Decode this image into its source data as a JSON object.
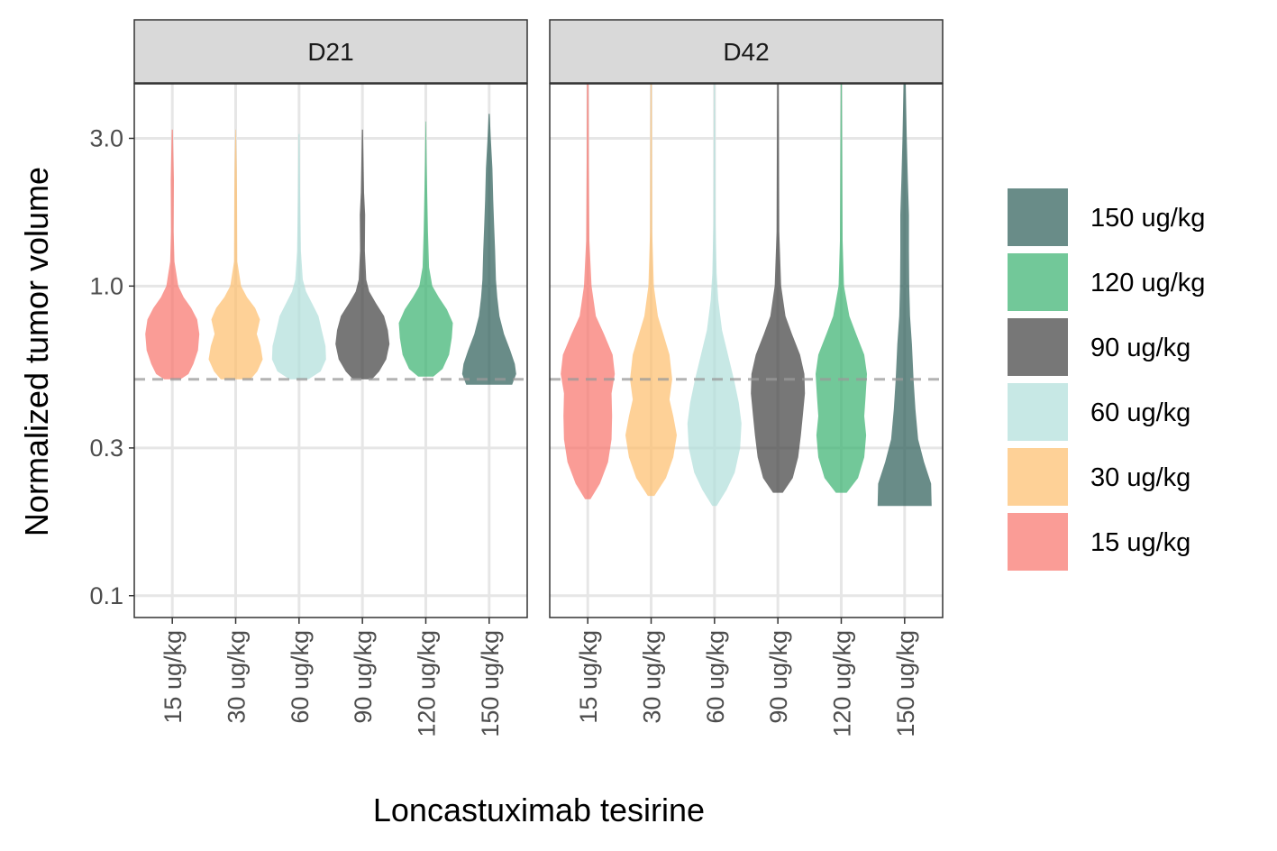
{
  "chart_data": {
    "type": "violin",
    "xlabel": "Loncastuximab tesirine",
    "ylabel": "Normalized tumor volume",
    "y_scale": "log",
    "ylim": [
      0.085,
      4.5
    ],
    "y_ticks": [
      {
        "value": 0.1,
        "label": "0.1"
      },
      {
        "value": 0.3,
        "label": "0.3"
      },
      {
        "value": 1.0,
        "label": "1.0"
      },
      {
        "value": 3.0,
        "label": "3.0"
      }
    ],
    "reference_line": 0.5,
    "categories": [
      "15 ug/kg",
      "30 ug/kg",
      "60 ug/kg",
      "90 ug/kg",
      "120 ug/kg",
      "150 ug/kg"
    ],
    "colors": [
      "#F8766D",
      "#FDBF6F",
      "#B2DFDB",
      "#424242",
      "#3CB371",
      "#2F5F5A"
    ],
    "legend": {
      "placement": "right",
      "entries": [
        "150 ug/kg",
        "120 ug/kg",
        "90 ug/kg",
        "60 ug/kg",
        "30 ug/kg",
        "15 ug/kg"
      ]
    },
    "grid": true,
    "facets": [
      {
        "label": "D21",
        "violins": [
          {
            "min": 0.5,
            "max": 3.2,
            "profile": [
              [
                0.5,
                0.3
              ],
              [
                0.52,
                0.6
              ],
              [
                0.56,
                0.78
              ],
              [
                0.62,
                0.95
              ],
              [
                0.7,
                1.0
              ],
              [
                0.78,
                0.92
              ],
              [
                0.85,
                0.7
              ],
              [
                0.92,
                0.42
              ],
              [
                1.0,
                0.22
              ],
              [
                1.2,
                0.08
              ],
              [
                1.5,
                0.05
              ],
              [
                2.2,
                0.06
              ],
              [
                3.2,
                0.02
              ]
            ]
          },
          {
            "min": 0.5,
            "max": 3.2,
            "profile": [
              [
                0.5,
                0.55
              ],
              [
                0.53,
                0.8
              ],
              [
                0.58,
                1.0
              ],
              [
                0.64,
                0.92
              ],
              [
                0.7,
                0.78
              ],
              [
                0.78,
                0.9
              ],
              [
                0.85,
                0.72
              ],
              [
                0.92,
                0.42
              ],
              [
                1.0,
                0.2
              ],
              [
                1.2,
                0.06
              ],
              [
                2.0,
                0.05
              ],
              [
                2.4,
                0.04
              ],
              [
                3.2,
                0.01
              ]
            ]
          },
          {
            "min": 0.5,
            "max": 3.1,
            "profile": [
              [
                0.5,
                0.35
              ],
              [
                0.53,
                0.8
              ],
              [
                0.58,
                1.0
              ],
              [
                0.64,
                0.98
              ],
              [
                0.72,
                0.84
              ],
              [
                0.8,
                0.72
              ],
              [
                0.88,
                0.48
              ],
              [
                0.96,
                0.26
              ],
              [
                1.05,
                0.14
              ],
              [
                1.3,
                0.07
              ],
              [
                2.0,
                0.04
              ],
              [
                3.1,
                0.02
              ]
            ]
          },
          {
            "min": 0.5,
            "max": 3.2,
            "profile": [
              [
                0.5,
                0.35
              ],
              [
                0.53,
                0.62
              ],
              [
                0.58,
                0.88
              ],
              [
                0.65,
                1.0
              ],
              [
                0.72,
                0.94
              ],
              [
                0.8,
                0.8
              ],
              [
                0.88,
                0.5
              ],
              [
                0.96,
                0.25
              ],
              [
                1.05,
                0.14
              ],
              [
                1.3,
                0.09
              ],
              [
                1.7,
                0.1
              ],
              [
                2.0,
                0.06
              ],
              [
                3.2,
                0.02
              ]
            ]
          },
          {
            "min": 0.51,
            "max": 3.4,
            "profile": [
              [
                0.51,
                0.28
              ],
              [
                0.54,
                0.62
              ],
              [
                0.6,
                0.86
              ],
              [
                0.68,
                0.96
              ],
              [
                0.76,
                1.0
              ],
              [
                0.84,
                0.78
              ],
              [
                0.92,
                0.48
              ],
              [
                1.0,
                0.24
              ],
              [
                1.15,
                0.12
              ],
              [
                1.5,
                0.08
              ],
              [
                2.5,
                0.03
              ],
              [
                3.4,
                0.01
              ]
            ]
          },
          {
            "min": 0.48,
            "max": 3.6,
            "profile": [
              [
                0.48,
                0.85
              ],
              [
                0.52,
                1.0
              ],
              [
                0.56,
                0.95
              ],
              [
                0.62,
                0.78
              ],
              [
                0.7,
                0.55
              ],
              [
                0.8,
                0.38
              ],
              [
                0.92,
                0.3
              ],
              [
                1.05,
                0.25
              ],
              [
                1.3,
                0.22
              ],
              [
                1.6,
                0.18
              ],
              [
                1.9,
                0.15
              ],
              [
                2.4,
                0.12
              ],
              [
                3.0,
                0.06
              ],
              [
                3.6,
                0.02
              ]
            ]
          }
        ]
      },
      {
        "label": "D42",
        "violins": [
          {
            "min": 0.205,
            "max": 4.5,
            "profile": [
              [
                0.205,
                0.1
              ],
              [
                0.23,
                0.45
              ],
              [
                0.27,
                0.75
              ],
              [
                0.32,
                0.88
              ],
              [
                0.38,
                0.9
              ],
              [
                0.45,
                0.88
              ],
              [
                0.52,
                1.0
              ],
              [
                0.6,
                0.92
              ],
              [
                0.7,
                0.6
              ],
              [
                0.8,
                0.3
              ],
              [
                1.0,
                0.14
              ],
              [
                1.4,
                0.06
              ],
              [
                2.5,
                0.04
              ],
              [
                4.5,
                0.03
              ]
            ]
          },
          {
            "min": 0.21,
            "max": 4.5,
            "profile": [
              [
                0.21,
                0.12
              ],
              [
                0.24,
                0.55
              ],
              [
                0.28,
                0.82
              ],
              [
                0.33,
                0.95
              ],
              [
                0.38,
                0.82
              ],
              [
                0.43,
                0.68
              ],
              [
                0.5,
                0.78
              ],
              [
                0.6,
                0.68
              ],
              [
                0.7,
                0.45
              ],
              [
                0.8,
                0.25
              ],
              [
                1.0,
                0.1
              ],
              [
                1.5,
                0.04
              ],
              [
                4.5,
                0.02
              ]
            ]
          },
          {
            "min": 0.195,
            "max": 4.5,
            "profile": [
              [
                0.195,
                0.08
              ],
              [
                0.22,
                0.45
              ],
              [
                0.25,
                0.75
              ],
              [
                0.3,
                0.95
              ],
              [
                0.36,
                1.0
              ],
              [
                0.42,
                0.9
              ],
              [
                0.5,
                0.72
              ],
              [
                0.6,
                0.5
              ],
              [
                0.72,
                0.28
              ],
              [
                0.9,
                0.14
              ],
              [
                1.1,
                0.08
              ],
              [
                1.6,
                0.04
              ],
              [
                4.5,
                0.02
              ]
            ]
          },
          {
            "min": 0.215,
            "max": 4.5,
            "profile": [
              [
                0.215,
                0.18
              ],
              [
                0.24,
                0.55
              ],
              [
                0.28,
                0.75
              ],
              [
                0.33,
                0.85
              ],
              [
                0.38,
                0.92
              ],
              [
                0.45,
                1.0
              ],
              [
                0.52,
                0.98
              ],
              [
                0.6,
                0.82
              ],
              [
                0.7,
                0.52
              ],
              [
                0.8,
                0.28
              ],
              [
                1.0,
                0.12
              ],
              [
                1.5,
                0.05
              ],
              [
                4.5,
                0.03
              ]
            ]
          },
          {
            "min": 0.215,
            "max": 4.5,
            "profile": [
              [
                0.215,
                0.2
              ],
              [
                0.24,
                0.62
              ],
              [
                0.28,
                0.85
              ],
              [
                0.33,
                0.92
              ],
              [
                0.38,
                0.85
              ],
              [
                0.44,
                0.9
              ],
              [
                0.52,
                0.95
              ],
              [
                0.6,
                0.85
              ],
              [
                0.7,
                0.55
              ],
              [
                0.8,
                0.3
              ],
              [
                1.0,
                0.1
              ],
              [
                1.4,
                0.05
              ],
              [
                4.5,
                0.02
              ]
            ]
          },
          {
            "min": 0.195,
            "max": 4.5,
            "profile": [
              [
                0.195,
                1.0
              ],
              [
                0.23,
                0.98
              ],
              [
                0.27,
                0.72
              ],
              [
                0.32,
                0.5
              ],
              [
                0.4,
                0.4
              ],
              [
                0.5,
                0.33
              ],
              [
                0.65,
                0.27
              ],
              [
                0.8,
                0.2
              ],
              [
                1.0,
                0.17
              ],
              [
                1.3,
                0.16
              ],
              [
                1.7,
                0.16
              ],
              [
                2.2,
                0.12
              ],
              [
                3.0,
                0.08
              ],
              [
                4.5,
                0.04
              ]
            ]
          }
        ]
      }
    ]
  }
}
